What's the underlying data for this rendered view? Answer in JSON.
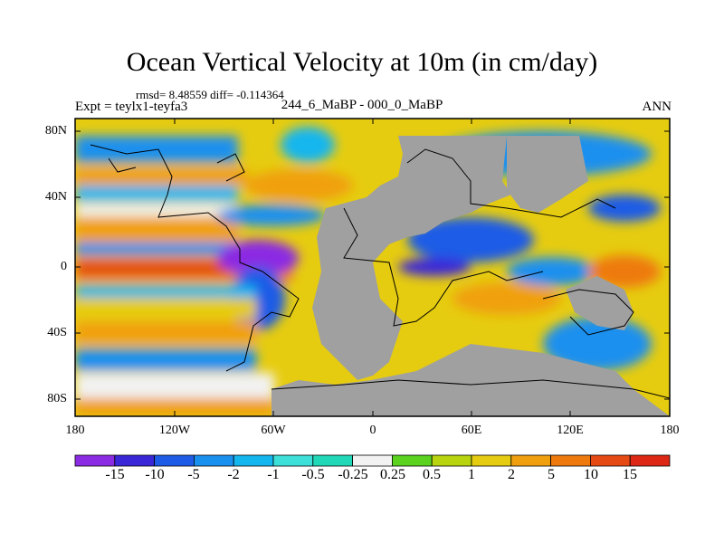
{
  "plot": {
    "title": "Ocean Vertical Velocity at 10m (in cm/day)",
    "stats": "rmsd= 8.48559 diff= -0.114364",
    "experiment": "Expt = teylx1-teyfa3",
    "subtitle": "244_6_MaBP - 000_0_MaBP",
    "season": "ANN"
  },
  "axes": {
    "lat_labels": [
      "80N",
      "40N",
      "0",
      "40S",
      "80S"
    ],
    "lon_labels": [
      "180",
      "120W",
      "60W",
      "0",
      "60E",
      "120E",
      "180"
    ]
  },
  "colorbar": {
    "labels": [
      "-15",
      "-10",
      "-5",
      "-2",
      "-1",
      "-0.5",
      "-0.25",
      "0.25",
      "0.5",
      "1",
      "2",
      "5",
      "10",
      "15"
    ],
    "colors": [
      "#8b2be2",
      "#3a28d8",
      "#1e5be6",
      "#1a90ee",
      "#14b6ee",
      "#3ce0d8",
      "#20d8b8",
      "#f2f2f2",
      "#5ad21e",
      "#b8d40e",
      "#e6cc10",
      "#f0a00e",
      "#ee7a0e",
      "#e64a14",
      "#dc2814"
    ]
  },
  "map": {
    "land_color": "#a0a0a0",
    "projection": "cylindrical equidistant",
    "lon_range": [
      -180,
      180
    ],
    "lat_range": [
      -90,
      90
    ]
  }
}
